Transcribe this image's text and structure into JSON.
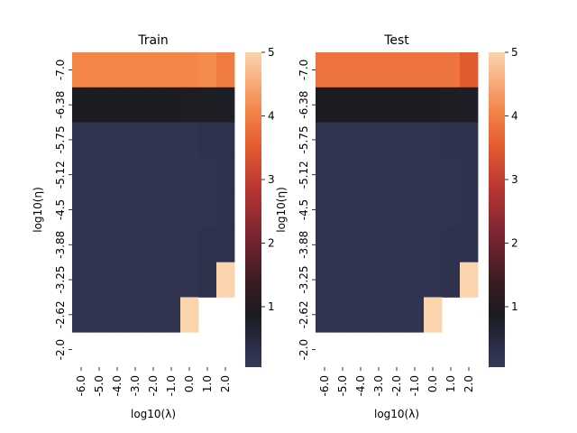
{
  "chart_data": [
    {
      "type": "heatmap",
      "title": "Train",
      "xlabel": "log10(λ)",
      "ylabel": "log10(η)",
      "x_ticks": [
        "-6.0",
        "-5.0",
        "-4.0",
        "-3.0",
        "-2.0",
        "-1.0",
        "0.0",
        "1.0",
        "2.0"
      ],
      "y_ticks": [
        "-7.0",
        "-6.38",
        "-5.75",
        "-5.12",
        "-4.5",
        "-3.88",
        "-3.25",
        "-2.62",
        "-2.0"
      ],
      "colorbar": {
        "ticks": [
          "1",
          "2",
          "3",
          "4",
          "5"
        ],
        "range": [
          0.05,
          5.0
        ],
        "colormap": "icefire"
      },
      "values": [
        [
          4.1,
          4.1,
          4.1,
          4.1,
          4.1,
          4.1,
          4.1,
          4.15,
          3.95
        ],
        [
          0.85,
          0.85,
          0.85,
          0.85,
          0.85,
          0.85,
          0.84,
          0.82,
          0.8
        ],
        [
          0.22,
          0.22,
          0.22,
          0.22,
          0.22,
          0.22,
          0.22,
          0.25,
          0.25
        ],
        [
          0.22,
          0.22,
          0.22,
          0.22,
          0.22,
          0.22,
          0.22,
          0.22,
          0.25
        ],
        [
          0.22,
          0.22,
          0.22,
          0.22,
          0.22,
          0.22,
          0.22,
          0.22,
          0.25
        ],
        [
          0.22,
          0.22,
          0.22,
          0.22,
          0.22,
          0.22,
          0.22,
          0.27,
          0.27
        ],
        [
          0.22,
          0.22,
          0.22,
          0.22,
          0.22,
          0.22,
          0.22,
          0.27,
          5.0
        ],
        [
          0.22,
          0.22,
          0.22,
          0.22,
          0.22,
          0.22,
          5.0,
          null,
          null
        ],
        [
          null,
          null,
          null,
          null,
          null,
          null,
          null,
          null,
          null
        ]
      ]
    },
    {
      "type": "heatmap",
      "title": "Test",
      "xlabel": "log10(λ)",
      "ylabel": "log10(η)",
      "x_ticks": [
        "-6.0",
        "-5.0",
        "-4.0",
        "-3.0",
        "-2.0",
        "-1.0",
        "0.0",
        "1.0",
        "2.0"
      ],
      "y_ticks": [
        "-7.0",
        "-6.38",
        "-5.75",
        "-5.12",
        "-4.5",
        "-3.88",
        "-3.25",
        "-2.62",
        "-2.0"
      ],
      "colorbar": {
        "ticks": [
          "1",
          "2",
          "3",
          "4",
          "5"
        ],
        "range": [
          0.05,
          5.0
        ],
        "colormap": "icefire"
      },
      "values": [
        [
          3.85,
          3.85,
          3.85,
          3.85,
          3.85,
          3.85,
          3.85,
          3.85,
          3.5
        ],
        [
          0.85,
          0.85,
          0.85,
          0.85,
          0.85,
          0.85,
          0.85,
          0.83,
          0.8
        ],
        [
          0.22,
          0.22,
          0.22,
          0.22,
          0.22,
          0.22,
          0.22,
          0.25,
          0.25
        ],
        [
          0.22,
          0.22,
          0.22,
          0.22,
          0.22,
          0.22,
          0.22,
          0.22,
          0.25
        ],
        [
          0.22,
          0.22,
          0.22,
          0.22,
          0.22,
          0.22,
          0.22,
          0.22,
          0.25
        ],
        [
          0.22,
          0.22,
          0.22,
          0.22,
          0.22,
          0.22,
          0.22,
          0.27,
          0.27
        ],
        [
          0.22,
          0.22,
          0.22,
          0.22,
          0.22,
          0.22,
          0.22,
          0.27,
          5.0
        ],
        [
          0.22,
          0.22,
          0.22,
          0.22,
          0.22,
          0.22,
          5.0,
          null,
          null
        ],
        [
          null,
          null,
          null,
          null,
          null,
          null,
          null,
          null,
          null
        ]
      ]
    }
  ]
}
